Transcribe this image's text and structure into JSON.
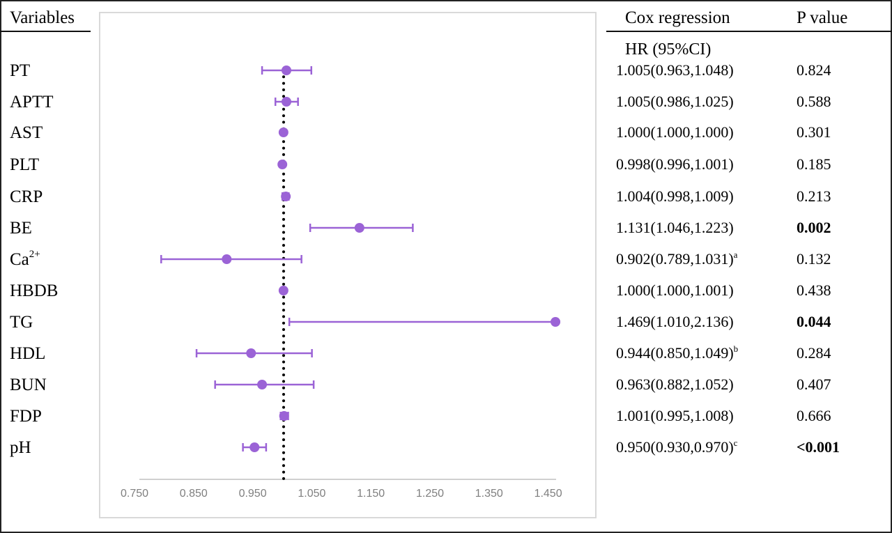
{
  "header": {
    "variables": "Variables",
    "cox_regression": "Cox regression",
    "hr_ci": "HR (95%CI)",
    "p_value": "P value"
  },
  "rows": [
    {
      "label": "PT",
      "sup": "",
      "hr_text": "1.005(0.963,1.048)",
      "note": "",
      "p": "0.824",
      "bold": false
    },
    {
      "label": "APTT",
      "sup": "",
      "hr_text": "1.005(0.986,1.025)",
      "note": "",
      "p": "0.588",
      "bold": false
    },
    {
      "label": "AST",
      "sup": "",
      "hr_text": "1.000(1.000,1.000)",
      "note": "",
      "p": "0.301",
      "bold": false
    },
    {
      "label": "PLT",
      "sup": "",
      "hr_text": "0.998(0.996,1.001)",
      "note": "",
      "p": "0.185",
      "bold": false
    },
    {
      "label": "CRP",
      "sup": "",
      "hr_text": "1.004(0.998,1.009)",
      "note": "",
      "p": "0.213",
      "bold": false
    },
    {
      "label": "BE",
      "sup": "",
      "hr_text": "1.131(1.046,1.223)",
      "note": "",
      "p": "0.002",
      "bold": true
    },
    {
      "label": "Ca",
      "sup": "2+",
      "hr_text": "0.902(0.789,1.031)",
      "note": "a",
      "p": "0.132",
      "bold": false
    },
    {
      "label": "HBDB",
      "sup": "",
      "hr_text": "1.000(1.000,1.001)",
      "note": "",
      "p": "0.438",
      "bold": false
    },
    {
      "label": "TG",
      "sup": "",
      "hr_text": "1.469(1.010,2.136)",
      "note": "",
      "p": "0.044",
      "bold": true
    },
    {
      "label": "HDL",
      "sup": "",
      "hr_text": "0.944(0.850,1.049)",
      "note": "b",
      "p": "0.284",
      "bold": false
    },
    {
      "label": "BUN",
      "sup": "",
      "hr_text": "0.963(0.882,1.052)",
      "note": "",
      "p": "0.407",
      "bold": false
    },
    {
      "label": "FDP",
      "sup": "",
      "hr_text": "1.001(0.995,1.008)",
      "note": "",
      "p": "0.666",
      "bold": false
    },
    {
      "label": "pH",
      "sup": "",
      "hr_text": "0.950(0.930,0.970)",
      "note": "c",
      "p": "<0.001",
      "bold": true
    }
  ],
  "colors": {
    "marker": "#9b63d6",
    "reference_line": "#000000",
    "axis": "#d0d0d0",
    "tick_label": "#7f7f7f",
    "panel_border": "#d9d9d9"
  },
  "chart_data": {
    "type": "scatter",
    "subtype": "forest_plot",
    "title": "",
    "xlabel": "",
    "ylabel": "Variables",
    "xlim": [
      0.75,
      1.47
    ],
    "x_ticks": [
      "0.750",
      "0.850",
      "0.950",
      "1.050",
      "1.150",
      "1.250",
      "1.350",
      "1.450"
    ],
    "reference_line": 1.0,
    "grid": false,
    "legend": null,
    "categories": [
      "PT",
      "APTT",
      "AST",
      "PLT",
      "CRP",
      "BE",
      "Ca2+",
      "HBDB",
      "TG",
      "HDL",
      "BUN",
      "FDP",
      "pH"
    ],
    "series": [
      {
        "name": "HR",
        "values": [
          1.005,
          1.005,
          1.0,
          0.998,
          1.004,
          1.131,
          0.902,
          1.0,
          1.469,
          0.944,
          0.963,
          1.001,
          0.95
        ]
      },
      {
        "name": "CI lower",
        "values": [
          0.963,
          0.986,
          1.0,
          0.996,
          0.998,
          1.046,
          0.789,
          1.0,
          1.01,
          0.85,
          0.882,
          0.995,
          0.93
        ]
      },
      {
        "name": "CI upper",
        "values": [
          1.048,
          1.025,
          1.0,
          1.001,
          1.009,
          1.223,
          1.031,
          1.001,
          2.136,
          1.049,
          1.052,
          1.008,
          0.97
        ]
      }
    ],
    "p_values": [
      "0.824",
      "0.588",
      "0.301",
      "0.185",
      "0.213",
      "0.002",
      "0.132",
      "0.438",
      "0.044",
      "0.284",
      "0.407",
      "0.666",
      "<0.001"
    ]
  }
}
